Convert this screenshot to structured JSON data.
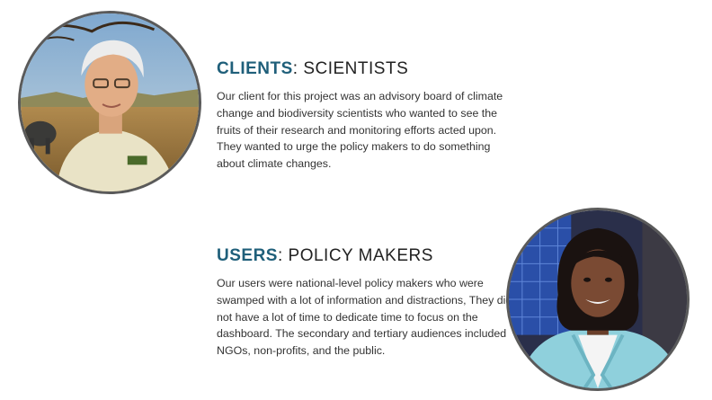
{
  "clients": {
    "heading_accent": "CLIENTS",
    "heading_rest": ": SCIENTISTS",
    "body": "Our client for this project was an advisory board of climate change and biodiversity scientists who wanted to see the fruits of their research and monitoring efforts acted upon. They wanted to urge the policy makers to do something about climate changes."
  },
  "users": {
    "heading_accent": "USERS",
    "heading_rest": ": POLICY MAKERS",
    "body": "Our users were national-level policy makers who were swamped with a lot of information and distractions, They did not have a lot of time to dedicate time to focus on the dashboard. The secondary and tertiary audiences included NGOs, non-profits, and the public."
  },
  "colors": {
    "accent": "#1f5f7a",
    "text": "#333333",
    "border": "#5a5a5a"
  }
}
